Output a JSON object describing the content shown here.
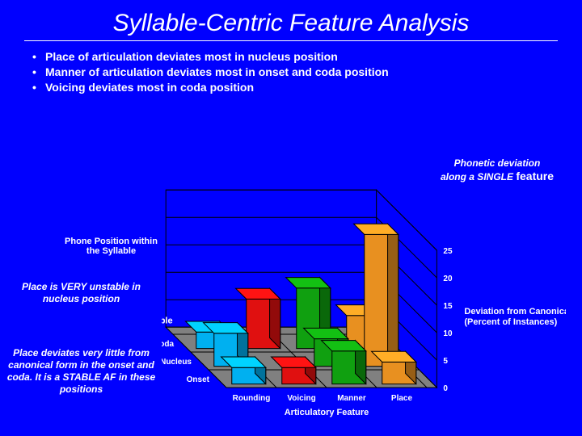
{
  "title": "Syllable-Centric Feature Analysis",
  "bullets": [
    "Place of articulation deviates most in nucleus position",
    "Manner of articulation deviates most in onset and coda position",
    "Voicing deviates most in coda position"
  ],
  "callouts": {
    "right": {
      "line1": "Phonetic deviation",
      "line2_a": "along a SINGLE ",
      "line2_b": "feature"
    },
    "mid": "Place is VERY unstable in nucleus position",
    "low": "Place deviates very little from canonical form in the onset and coda. It is a STABLE AF in these positions"
  },
  "chart": {
    "type": "3d-bar",
    "background_color": "#0000ff",
    "floor_color": "#808080",
    "wall_color": "#0000ff",
    "grid_color": "#000000",
    "x_axis": {
      "label": "Articulatory Feature",
      "categories": [
        "Rounding",
        "Voicing",
        "Manner",
        "Place"
      ]
    },
    "z_axis": {
      "label": "Phone Position\nwithin the Syllable",
      "categories": [
        "Onset",
        "Nucleus",
        "Coda"
      ]
    },
    "y_axis": {
      "label": "Deviation from Canonical\n(Percent of Instances)",
      "ticks": [
        0,
        5,
        10,
        15,
        20,
        25
      ],
      "ylim": [
        0,
        25
      ]
    },
    "series_colors": {
      "Rounding": "#00b0f0",
      "Voicing": "#e01010",
      "Manner": "#10a010",
      "Place": "#e89020"
    },
    "side_shade_factor": 0.65,
    "top_shade_factor": 1.2,
    "data": {
      "Onset": {
        "Rounding": 3,
        "Voicing": 3,
        "Manner": 6,
        "Place": 4
      },
      "Nucleus": {
        "Rounding": 6,
        "Voicing": 0,
        "Manner": 5,
        "Place": 24
      },
      "Coda": {
        "Rounding": 3,
        "Voicing": 9,
        "Manner": 11,
        "Place": 6
      }
    },
    "label_fontsize": 11,
    "label_color": "#ffffff",
    "title_fontsize": 30
  }
}
